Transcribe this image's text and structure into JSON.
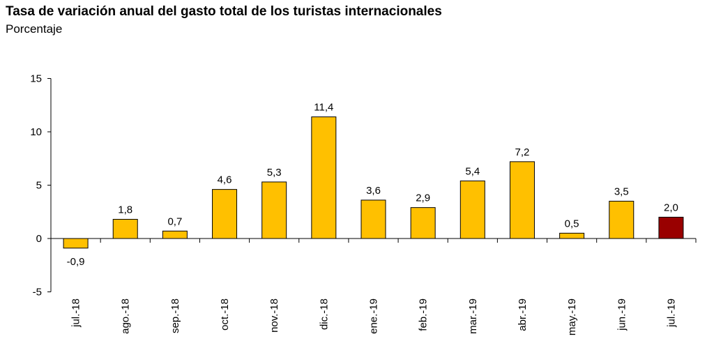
{
  "chart_data": {
    "type": "bar",
    "title": "Tasa de variación anual del gasto total de los turistas internacionales",
    "subtitle": "Porcentaje",
    "xlabel": "",
    "ylabel": "",
    "ylim": [
      -5,
      15
    ],
    "yticks": [
      -5,
      0,
      5,
      10,
      15
    ],
    "ytick_labels": [
      "-5",
      "0",
      "5",
      "10",
      "15"
    ],
    "grid": false,
    "legend": "none",
    "categories": [
      "jul.-18",
      "ago.-18",
      "sep.-18",
      "oct.-18",
      "nov.-18",
      "dic.-18",
      "ene.-19",
      "feb.-19",
      "mar.-19",
      "abr.-19",
      "may.-19",
      "jun.-19",
      "jul.-19"
    ],
    "values": [
      -0.9,
      1.8,
      0.7,
      4.6,
      5.3,
      11.4,
      3.6,
      2.9,
      5.4,
      7.2,
      0.5,
      3.5,
      2.0
    ],
    "value_labels": [
      "-0,9",
      "1,8",
      "0,7",
      "4,6",
      "5,3",
      "11,4",
      "3,6",
      "2,9",
      "5,4",
      "7,2",
      "0,5",
      "3,5",
      "2,0"
    ],
    "colors": {
      "bar": "#FFC000",
      "highlight_bar": "#990000",
      "bar_stroke": "#000000",
      "axis": "#000000"
    },
    "highlight_index": 12
  }
}
